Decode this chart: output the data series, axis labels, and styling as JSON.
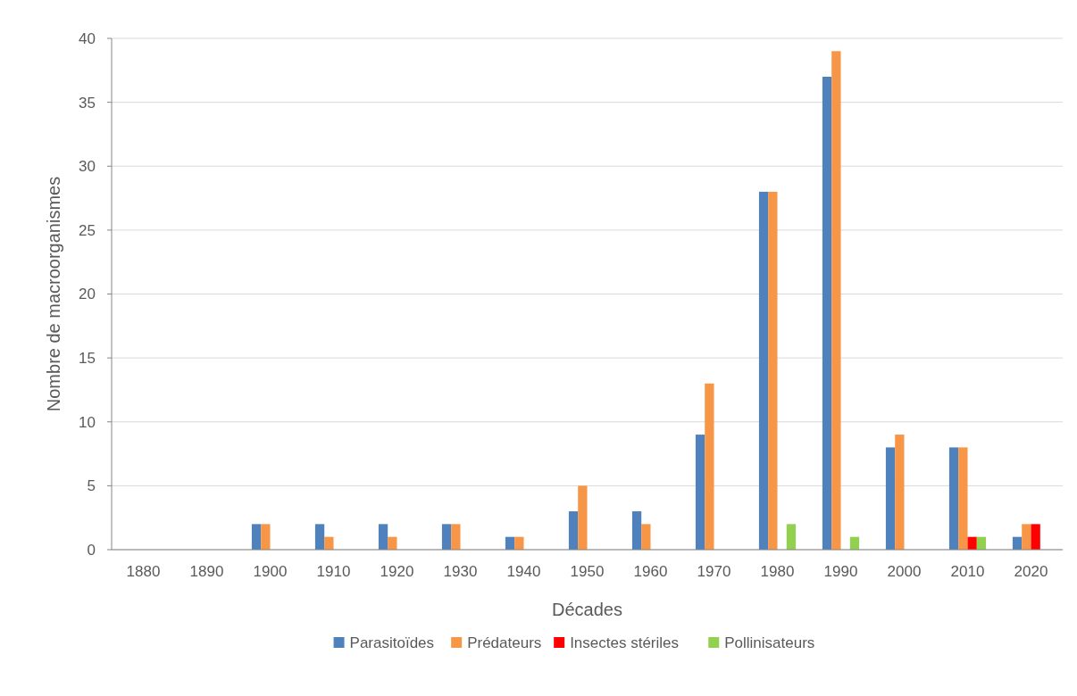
{
  "chart_data": {
    "type": "bar",
    "xlabel": "Décades",
    "ylabel": "Nombre de macroorganismes",
    "categories": [
      "1880",
      "1890",
      "1900",
      "1910",
      "1920",
      "1930",
      "1940",
      "1950",
      "1960",
      "1970",
      "1980",
      "1990",
      "2000",
      "2010",
      "2020"
    ],
    "series": [
      {
        "name": "Parasitoïdes",
        "color": "#4f81bd",
        "values": [
          0,
          0,
          2,
          2,
          2,
          2,
          1,
          3,
          3,
          9,
          28,
          37,
          8,
          8,
          1
        ]
      },
      {
        "name": "Prédateurs",
        "color": "#f79646",
        "values": [
          0,
          0,
          2,
          1,
          1,
          2,
          1,
          5,
          2,
          13,
          28,
          39,
          9,
          8,
          2
        ]
      },
      {
        "name": "Insectes stériles",
        "color": "#ff0000",
        "values": [
          0,
          0,
          0,
          0,
          0,
          0,
          0,
          0,
          0,
          0,
          0,
          0,
          0,
          1,
          2
        ]
      },
      {
        "name": "Pollinisateurs",
        "color": "#92d050",
        "values": [
          0,
          0,
          0,
          0,
          0,
          0,
          0,
          0,
          0,
          0,
          2,
          1,
          0,
          1,
          0
        ]
      }
    ],
    "ylim": [
      0,
      40
    ],
    "yticks": [
      0,
      5,
      10,
      15,
      20,
      25,
      30,
      35,
      40
    ],
    "grid": "y",
    "legend": "bottom"
  }
}
